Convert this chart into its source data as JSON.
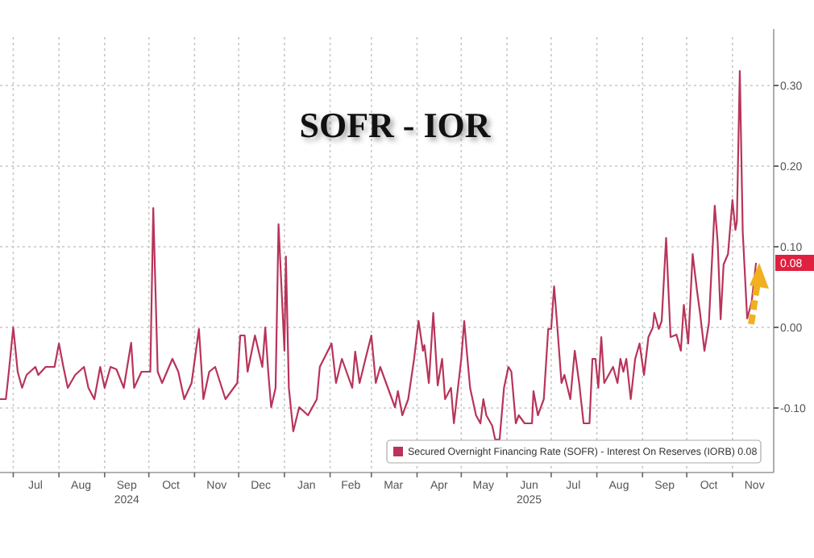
{
  "chart_data": {
    "type": "line",
    "title": "SOFR - IOR",
    "x": [
      "2024-06-22",
      "2024-06-26",
      "2024-06-28",
      "2024-07-01",
      "2024-07-04",
      "2024-07-07",
      "2024-07-10",
      "2024-07-16",
      "2024-07-18",
      "2024-07-23",
      "2024-07-29",
      "2024-08-01",
      "2024-08-04",
      "2024-08-07",
      "2024-08-12",
      "2024-08-18",
      "2024-08-21",
      "2024-08-25",
      "2024-08-29",
      "2024-09-01",
      "2024-09-05",
      "2024-09-09",
      "2024-09-14",
      "2024-09-19",
      "2024-09-21",
      "2024-09-26",
      "2024-10-02",
      "2024-10-04",
      "2024-10-07",
      "2024-10-10",
      "2024-10-17",
      "2024-10-21",
      "2024-10-25",
      "2024-10-30",
      "2024-11-04",
      "2024-11-07",
      "2024-11-11",
      "2024-11-15",
      "2024-11-22",
      "2024-11-30",
      "2024-12-02",
      "2024-12-05",
      "2024-12-07",
      "2024-12-12",
      "2024-12-17",
      "2024-12-19",
      "2024-12-21",
      "2024-12-23",
      "2024-12-26",
      "2024-12-28",
      "2025-01-01",
      "2025-01-02",
      "2025-01-04",
      "2025-01-07",
      "2025-01-11",
      "2025-01-17",
      "2025-01-23",
      "2025-01-25",
      "2025-02-02",
      "2025-02-05",
      "2025-02-09",
      "2025-02-16",
      "2025-02-18",
      "2025-02-21",
      "2025-02-25",
      "2025-03-01",
      "2025-03-04",
      "2025-03-07",
      "2025-03-17",
      "2025-03-19",
      "2025-03-22",
      "2025-03-26",
      "2025-03-30",
      "2025-04-02",
      "2025-04-05",
      "2025-04-06",
      "2025-04-09",
      "2025-04-12",
      "2025-04-15",
      "2025-04-18",
      "2025-04-20",
      "2025-04-24",
      "2025-04-26",
      "2025-05-01",
      "2025-05-03",
      "2025-05-05",
      "2025-05-07",
      "2025-05-11",
      "2025-05-14",
      "2025-05-16",
      "2025-05-18",
      "2025-05-22",
      "2025-05-24",
      "2025-05-27",
      "2025-05-30",
      "2025-06-02",
      "2025-06-04",
      "2025-06-07",
      "2025-06-09",
      "2025-06-13",
      "2025-06-18",
      "2025-06-19",
      "2025-06-22",
      "2025-06-26",
      "2025-06-29",
      "2025-07-01",
      "2025-07-03",
      "2025-07-05",
      "2025-07-08",
      "2025-07-10",
      "2025-07-14",
      "2025-07-17",
      "2025-07-20",
      "2025-07-23",
      "2025-07-27",
      "2025-07-29",
      "2025-07-31",
      "2025-08-02",
      "2025-08-04",
      "2025-08-06",
      "2025-08-12",
      "2025-08-15",
      "2025-08-17",
      "2025-08-19",
      "2025-08-21",
      "2025-08-24",
      "2025-08-27",
      "2025-08-30",
      "2025-09-02",
      "2025-09-05",
      "2025-09-08",
      "2025-09-09",
      "2025-09-12",
      "2025-09-14",
      "2025-09-17",
      "2025-09-20",
      "2025-09-24",
      "2025-09-27",
      "2025-09-29",
      "2025-10-02",
      "2025-10-05",
      "2025-10-08",
      "2025-10-10",
      "2025-10-13",
      "2025-10-16",
      "2025-10-20",
      "2025-10-22",
      "2025-10-24",
      "2025-10-26",
      "2025-10-29",
      "2025-11-01",
      "2025-11-03",
      "2025-11-04",
      "2025-11-06",
      "2025-11-08",
      "2025-11-11",
      "2025-11-14",
      "2025-11-17"
    ],
    "series": [
      {
        "name": "Secured Overnight Financing Rate (SOFR) - Interest On Reserves (IORB)",
        "color": "#b8345a",
        "values": [
          -0.089,
          -0.089,
          -0.055,
          0.0,
          -0.055,
          -0.075,
          -0.059,
          -0.049,
          -0.059,
          -0.049,
          -0.049,
          -0.02,
          -0.049,
          -0.075,
          -0.059,
          -0.049,
          -0.075,
          -0.089,
          -0.049,
          -0.075,
          -0.049,
          -0.052,
          -0.075,
          -0.019,
          -0.075,
          -0.055,
          -0.055,
          0.148,
          -0.055,
          -0.069,
          -0.039,
          -0.055,
          -0.089,
          -0.069,
          -0.002,
          -0.089,
          -0.055,
          -0.049,
          -0.089,
          -0.069,
          -0.01,
          -0.01,
          -0.055,
          -0.01,
          -0.049,
          0.0,
          -0.055,
          -0.099,
          -0.075,
          0.128,
          -0.029,
          0.088,
          -0.075,
          -0.129,
          -0.099,
          -0.109,
          -0.089,
          -0.049,
          -0.02,
          -0.069,
          -0.039,
          -0.075,
          -0.03,
          -0.069,
          -0.039,
          -0.01,
          -0.069,
          -0.049,
          -0.099,
          -0.079,
          -0.109,
          -0.089,
          -0.039,
          0.008,
          -0.029,
          -0.022,
          -0.069,
          0.018,
          -0.072,
          -0.039,
          -0.089,
          -0.075,
          -0.119,
          -0.039,
          0.008,
          -0.035,
          -0.075,
          -0.109,
          -0.119,
          -0.089,
          -0.109,
          -0.122,
          -0.139,
          -0.139,
          -0.075,
          -0.049,
          -0.055,
          -0.119,
          -0.109,
          -0.119,
          -0.119,
          -0.079,
          -0.109,
          -0.089,
          -0.002,
          -0.002,
          0.051,
          0.005,
          -0.069,
          -0.059,
          -0.089,
          -0.029,
          -0.069,
          -0.119,
          -0.119,
          -0.039,
          -0.039,
          -0.075,
          -0.012,
          -0.069,
          -0.049,
          -0.069,
          -0.039,
          -0.055,
          -0.039,
          -0.089,
          -0.039,
          -0.02,
          -0.059,
          -0.012,
          0.0,
          0.018,
          -0.002,
          0.008,
          0.111,
          -0.012,
          -0.009,
          -0.029,
          0.028,
          -0.02,
          0.091,
          0.045,
          0.018,
          -0.029,
          0.005,
          0.151,
          0.105,
          0.01,
          0.078,
          0.091,
          0.158,
          0.121,
          0.131,
          0.318,
          0.118,
          0.011,
          0.031,
          0.08
        ]
      }
    ],
    "xlim": [
      "2024-06-22",
      "2025-11-29"
    ],
    "xticks": [
      {
        "value": "2024-07-01",
        "label": null
      },
      {
        "value": "2024-07-16",
        "label": "Jul"
      },
      {
        "value": "2024-08-01",
        "label": null
      },
      {
        "value": "2024-08-16",
        "label": "Aug"
      },
      {
        "value": "2024-09-01",
        "label": null
      },
      {
        "value": "2024-09-16",
        "label": "Sep\n2024"
      },
      {
        "value": "2024-10-01",
        "label": null
      },
      {
        "value": "2024-10-16",
        "label": "Oct"
      },
      {
        "value": "2024-11-01",
        "label": null
      },
      {
        "value": "2024-11-16",
        "label": "Nov"
      },
      {
        "value": "2024-12-01",
        "label": null
      },
      {
        "value": "2024-12-16",
        "label": "Dec"
      },
      {
        "value": "2025-01-01",
        "label": null
      },
      {
        "value": "2025-01-16",
        "label": "Jan"
      },
      {
        "value": "2025-02-01",
        "label": null
      },
      {
        "value": "2025-02-15",
        "label": "Feb"
      },
      {
        "value": "2025-03-01",
        "label": null
      },
      {
        "value": "2025-03-16",
        "label": "Mar"
      },
      {
        "value": "2025-04-01",
        "label": null
      },
      {
        "value": "2025-04-16",
        "label": "Apr"
      },
      {
        "value": "2025-05-01",
        "label": null
      },
      {
        "value": "2025-05-16",
        "label": "May"
      },
      {
        "value": "2025-06-01",
        "label": null
      },
      {
        "value": "2025-06-16",
        "label": "Jun\n2025"
      },
      {
        "value": "2025-07-01",
        "label": null
      },
      {
        "value": "2025-07-16",
        "label": "Jul"
      },
      {
        "value": "2025-08-01",
        "label": null
      },
      {
        "value": "2025-08-16",
        "label": "Aug"
      },
      {
        "value": "2025-09-01",
        "label": null
      },
      {
        "value": "2025-09-16",
        "label": "Sep"
      },
      {
        "value": "2025-10-01",
        "label": null
      },
      {
        "value": "2025-10-16",
        "label": "Oct"
      },
      {
        "value": "2025-11-01",
        "label": null
      },
      {
        "value": "2025-11-16",
        "label": "Nov"
      }
    ],
    "ylim": [
      -0.18,
      0.36
    ],
    "yticks": [
      {
        "value": -0.1,
        "label": "-0.10"
      },
      {
        "value": 0,
        "label": "0.00"
      },
      {
        "value": 0.1,
        "label": "0.10"
      },
      {
        "value": 0.2,
        "label": "0.20"
      },
      {
        "value": 0.3,
        "label": "0.30"
      }
    ],
    "grid": true,
    "legend": "bottom right",
    "annotations": [
      "0.08"
    ]
  }
}
